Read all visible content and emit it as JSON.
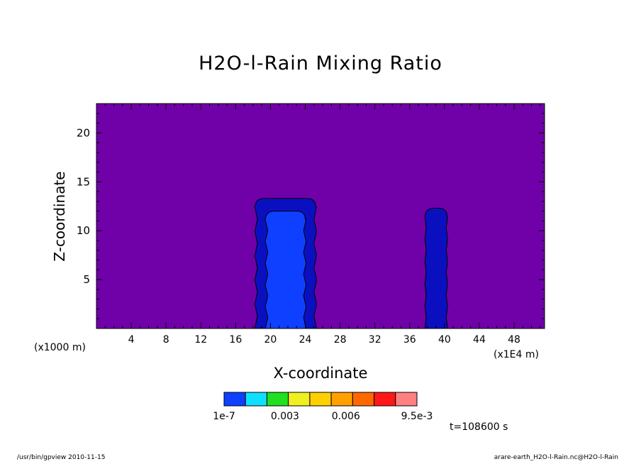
{
  "chart_data": {
    "type": "contour",
    "title": "H2O-l-Rain Mixing Ratio",
    "xlabel": "X-coordinate",
    "ylabel": "Z-coordinate",
    "x_unit_left": "(x1000 m)",
    "x_unit_right": "(x1E4 m)",
    "xlim": [
      0,
      51.5
    ],
    "ylim": [
      0,
      23
    ],
    "xticks": [
      "4",
      "8",
      "12",
      "16",
      "20",
      "24",
      "28",
      "32",
      "36",
      "40",
      "44",
      "48"
    ],
    "yticks": [
      "5",
      "10",
      "15",
      "20"
    ],
    "background_color": "#7000a8",
    "colorbar": {
      "colors": [
        "#1040ff",
        "#10e0ff",
        "#20e020",
        "#f0f020",
        "#ffd000",
        "#ffa000",
        "#ff6800",
        "#ff1818",
        "#ff8080"
      ],
      "labels": [
        "1e-7",
        "0.003",
        "0.006",
        "9.5e-3"
      ],
      "label_values": [
        0,
        0.003,
        0.006,
        0.0095
      ]
    },
    "features": [
      {
        "name": "rain-column-1-outer",
        "level": "1e-7",
        "x_range": [
          18.3,
          25.2
        ],
        "z_top": 13.3,
        "color": "#0a10c0"
      },
      {
        "name": "rain-column-1-inner",
        "level": "0.0013",
        "x_range": [
          19.5,
          24.0
        ],
        "z_top": 12.0,
        "color": "#1040ff"
      },
      {
        "name": "rain-column-2",
        "level": "1e-7",
        "x_range": [
          37.8,
          40.3
        ],
        "z_top": 12.3,
        "color": "#0a10c0"
      }
    ],
    "time_label": "t=108600 s"
  },
  "footer": {
    "left": "/usr/bin/gpview   2010-11-15",
    "right": "arare-earth_H2O-l-Rain.nc@H2O-l-Rain"
  }
}
